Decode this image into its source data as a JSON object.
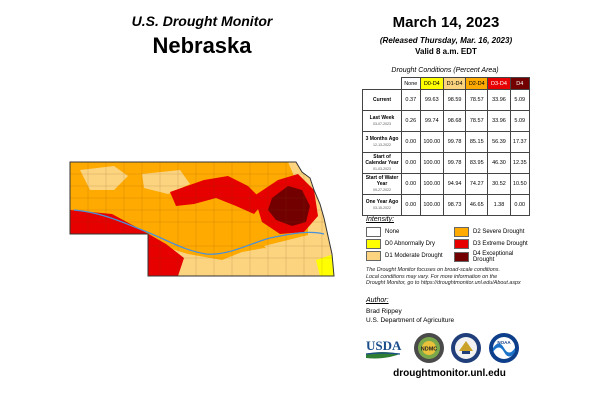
{
  "header": {
    "title": "U.S. Drought Monitor",
    "state": "Nebraska",
    "date": "March 14, 2023",
    "released": "(Released Thursday, Mar. 16, 2023)",
    "valid": "Valid 8 a.m. EDT"
  },
  "table": {
    "caption": "Drought Conditions (Percent Area)",
    "columns": [
      "None",
      "D0-D4",
      "D1-D4",
      "D2-D4",
      "D3-D4",
      "D4"
    ],
    "rows": [
      {
        "label": "Current",
        "date": "",
        "values": [
          "0.37",
          "99.63",
          "98.59",
          "78.57",
          "33.96",
          "5.09"
        ]
      },
      {
        "label": "Last Week",
        "date": "03-07-2023",
        "values": [
          "0.26",
          "99.74",
          "98.68",
          "78.57",
          "33.96",
          "5.09"
        ]
      },
      {
        "label": "3 Months Ago",
        "date": "12-13-2022",
        "values": [
          "0.00",
          "100.00",
          "99.78",
          "85.15",
          "56.39",
          "17.37"
        ]
      },
      {
        "label": "Start of Calendar Year",
        "date": "01-03-2023",
        "values": [
          "0.00",
          "100.00",
          "99.78",
          "83.95",
          "46.30",
          "12.35"
        ]
      },
      {
        "label": "Start of Water Year",
        "date": "09-27-2022",
        "values": [
          "0.00",
          "100.00",
          "94.94",
          "74.27",
          "30.52",
          "10.50"
        ]
      },
      {
        "label": "One Year Ago",
        "date": "03-15-2022",
        "values": [
          "0.00",
          "100.00",
          "98.73",
          "46.65",
          "1.38",
          "0.00"
        ]
      }
    ]
  },
  "intensity": {
    "label": "Intensity:",
    "items": [
      {
        "label": "None",
        "color": "#ffffff"
      },
      {
        "label": "D0 Abnormally Dry",
        "color": "#ffff00"
      },
      {
        "label": "D1 Moderate Drought",
        "color": "#fcd37f"
      },
      {
        "label": "D2 Severe Drought",
        "color": "#ffaa00"
      },
      {
        "label": "D3 Extreme Drought",
        "color": "#e60000"
      },
      {
        "label": "D4 Exceptional Drought",
        "color": "#730000"
      }
    ]
  },
  "blurb": {
    "line1": "The Drought Monitor focuses on broad-scale conditions.",
    "line2": "Local conditions may vary. For more information on the",
    "line3": "Drought Monitor, go to https://droughtmonitor.unl.edu/About.aspx"
  },
  "author": {
    "label": "Author:",
    "name": "Brad Rippey",
    "org": "U.S. Department of Agriculture"
  },
  "logos": {
    "usda": "USDA",
    "ndmc": "NDMC",
    "noaa": "NOAA"
  },
  "footer": {
    "url": "droughtmonitor.unl.edu"
  },
  "colors": {
    "none": "#ffffff",
    "d0": "#ffff00",
    "d1": "#fcd37f",
    "d2": "#ffaa00",
    "d3": "#e60000",
    "d4": "#730000",
    "river": "#4a90d9"
  }
}
